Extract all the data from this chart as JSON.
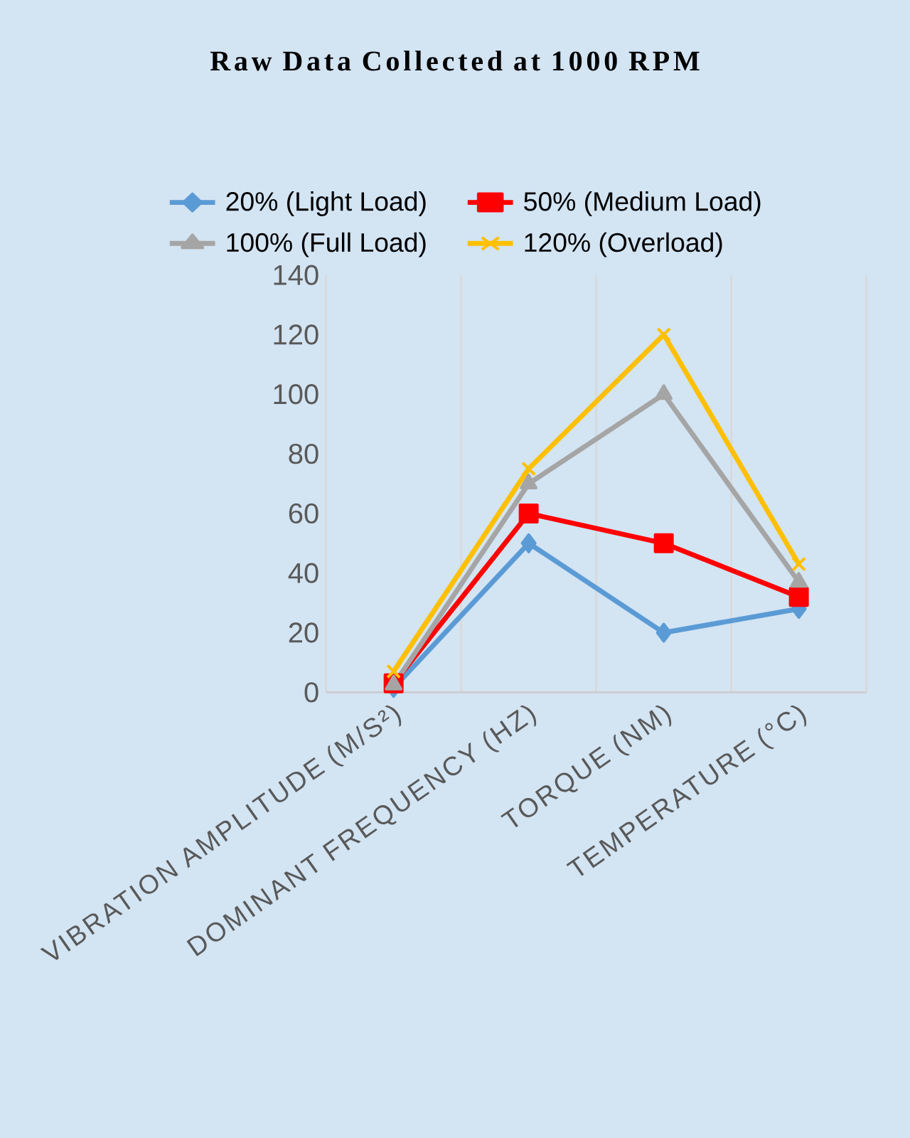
{
  "chart_data": {
    "type": "line",
    "title": "Raw Data Collected at 1000 RPM",
    "categories": [
      "VIBRATION AMPLITUDE (M/S²)",
      "DOMINANT FREQUENCY (HZ)",
      "TORQUE (NM)",
      "TEMPERATURE (°C)"
    ],
    "series": [
      {
        "name": "20% (Light Load)",
        "color": "#5b9bd5",
        "marker": "diamond",
        "values": [
          1.5,
          50,
          20,
          28
        ]
      },
      {
        "name": "50% (Medium Load)",
        "color": "#ff0000",
        "marker": "square",
        "values": [
          3,
          60,
          50,
          32
        ]
      },
      {
        "name": "100% (Full Load)",
        "color": "#a5a5a5",
        "marker": "triangle",
        "values": [
          2.5,
          70,
          100,
          37
        ]
      },
      {
        "name": "120% (Overload)",
        "color": "#ffc000",
        "marker": "cross",
        "values": [
          7,
          75,
          120,
          43
        ]
      }
    ],
    "ylim": [
      0,
      140
    ],
    "yticks": [
      0,
      20,
      40,
      60,
      80,
      100,
      120,
      140
    ],
    "grid": "x",
    "legend": "top",
    "line_style": "solid"
  }
}
